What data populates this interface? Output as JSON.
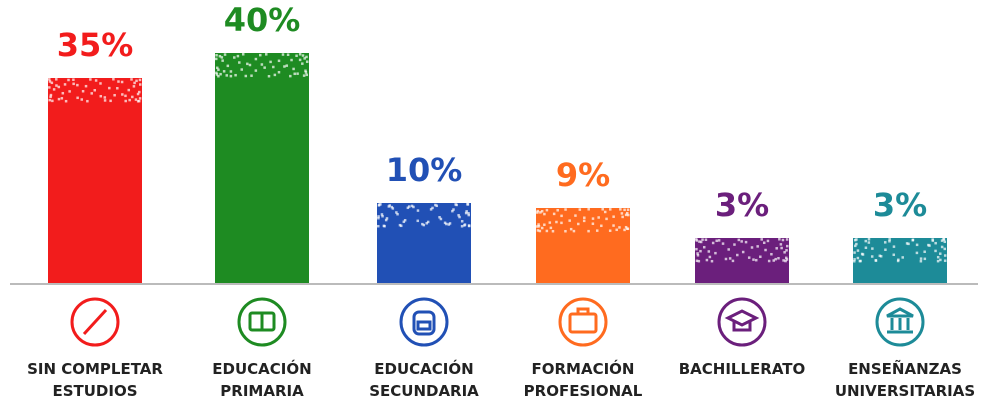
{
  "chart_data": {
    "type": "bar",
    "categories": [
      "SIN COMPLETAR ESTUDIOS",
      "EDUCACIÓN PRIMARIA",
      "EDUCACIÓN SECUNDARIA",
      "FORMACIÓN PROFESIONAL",
      "BACHILLERATO",
      "ENSEÑANZAS UNIVERSITARIAS"
    ],
    "values": [
      35,
      40,
      10,
      9,
      3,
      3
    ],
    "value_labels": [
      "35%",
      "40%",
      "10%",
      "9%",
      "3%",
      "3%"
    ],
    "colors": [
      "#f21c1c",
      "#1e8b22",
      "#2150b5",
      "#ff6b1f",
      "#6b1f7c",
      "#1d8b98"
    ]
  }
}
